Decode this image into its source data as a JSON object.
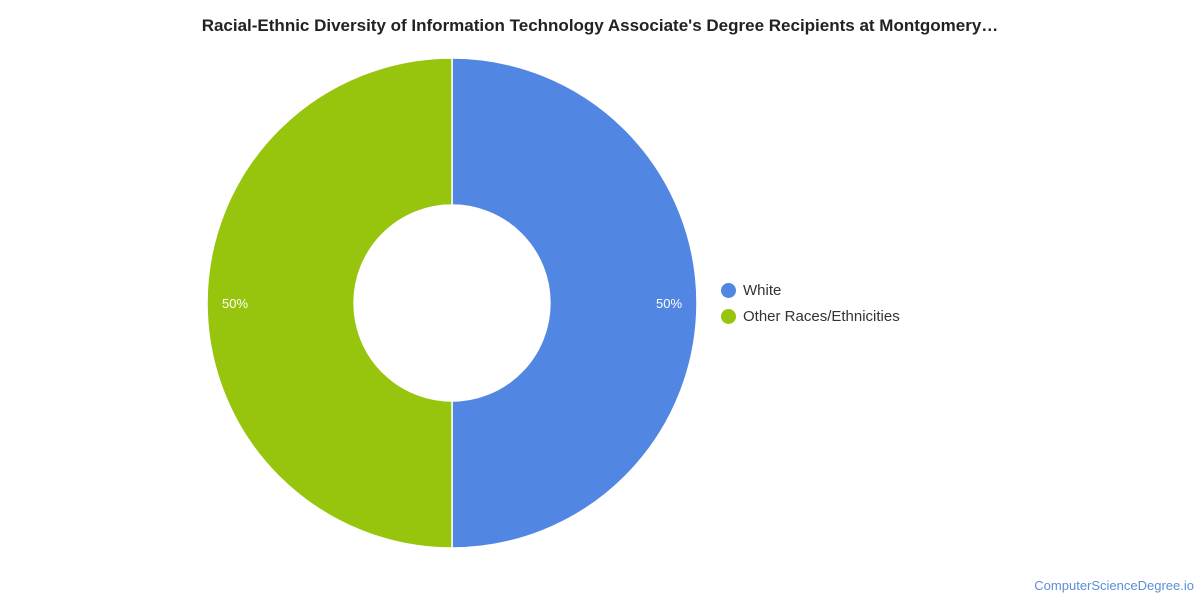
{
  "chart_data": {
    "type": "pie",
    "title": "Racial-Ethnic Diversity of Information Technology Associate's Degree Recipients at Montgomery…",
    "donut": true,
    "categories": [
      "White",
      "Other Races/Ethnicities"
    ],
    "values": [
      50,
      50
    ],
    "data_labels": [
      "50%",
      "50%"
    ],
    "colors": [
      "#5286e3",
      "#97c40d"
    ],
    "legend_position": "right"
  },
  "watermark": "ComputerScienceDegree.io"
}
